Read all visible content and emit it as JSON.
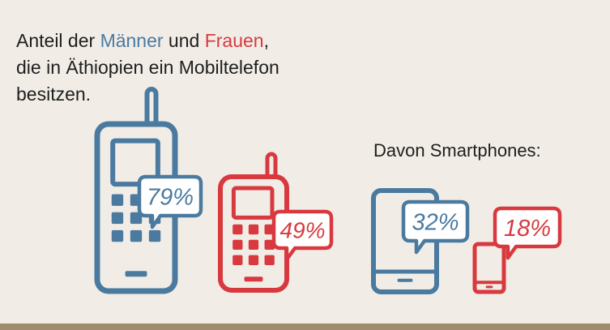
{
  "title": {
    "line1_pre": "Anteil der ",
    "men": "Männer",
    "mid": " und ",
    "women": "Frauen",
    "line1_post": ",",
    "line2": "die in Äthiopien ein Mobiltelefon",
    "line3": "besitzen."
  },
  "subtitle": "Davon Smartphones:",
  "colors": {
    "men": "#4a7aa0",
    "women": "#d8393f",
    "text": "#1e1e1e",
    "background": "#f1ede6",
    "bar": "#a08d6d"
  },
  "chart_data": {
    "type": "pictogram",
    "groups": [
      {
        "category": "Mobiltelefon",
        "gender": "Männer",
        "value": 79,
        "label": "79%",
        "icon": "feature-phone-icon"
      },
      {
        "category": "Mobiltelefon",
        "gender": "Frauen",
        "value": 49,
        "label": "49%",
        "icon": "feature-phone-icon"
      },
      {
        "category": "Smartphones",
        "gender": "Männer",
        "value": 32,
        "label": "32%",
        "icon": "smartphone-icon"
      },
      {
        "category": "Smartphones",
        "gender": "Frauen",
        "value": 18,
        "label": "18%",
        "icon": "smartphone-icon"
      }
    ]
  }
}
